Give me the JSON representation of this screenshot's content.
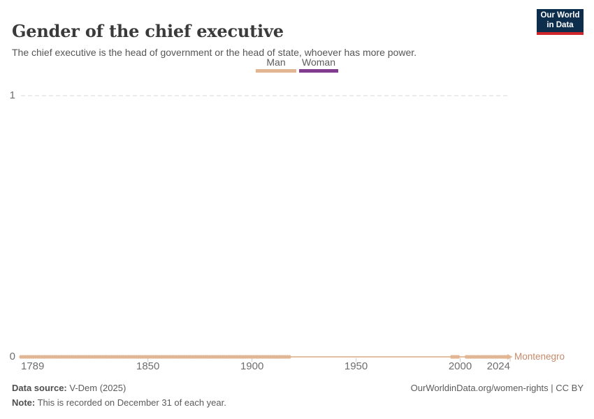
{
  "header": {
    "title": "Gender of the chief executive",
    "subtitle": "The chief executive is the head of government or the head of state, whoever has more power.",
    "logo": {
      "line1": "Our World",
      "line2": "in Data",
      "bg_color": "#0d2d4d",
      "accent_color": "#d1252c"
    }
  },
  "chart_data": {
    "type": "line",
    "title": "Gender of the chief executive",
    "x_range": [
      1789,
      2024
    ],
    "y_range": [
      0,
      1
    ],
    "x_ticks": [
      1789,
      1850,
      1900,
      1950,
      2000,
      2024
    ],
    "x_tick_marks": [
      1850,
      1900,
      1950,
      2000,
      2024
    ],
    "y_ticks": [
      1,
      0
    ],
    "gridline_values": [
      1
    ],
    "grid": "dashed horizontal gridline at y=1",
    "legend_position": "top-center",
    "categories": [
      {
        "label": "Man",
        "value": 0,
        "color": "#e2b693"
      },
      {
        "label": "Woman",
        "value": 1,
        "color": "#813b8f"
      }
    ],
    "series": [
      {
        "name": "Montenegro",
        "category": "Man",
        "value": 0,
        "color": "#e2b693",
        "label_color": "#c68a6a",
        "segments_with_markers": [
          [
            1789,
            1918
          ],
          [
            1996,
            2000
          ],
          [
            2003,
            2024
          ]
        ],
        "connector_span": [
          1918,
          2003
        ],
        "end_arrow": true
      }
    ]
  },
  "footer": {
    "source_bold": "Data source:",
    "source_rest": "V-Dem (2025)",
    "note_bold": "Note:",
    "note_rest": "This is recorded on December 31 of each year.",
    "link": "OurWorldinData.org/women-rights | CC BY"
  }
}
